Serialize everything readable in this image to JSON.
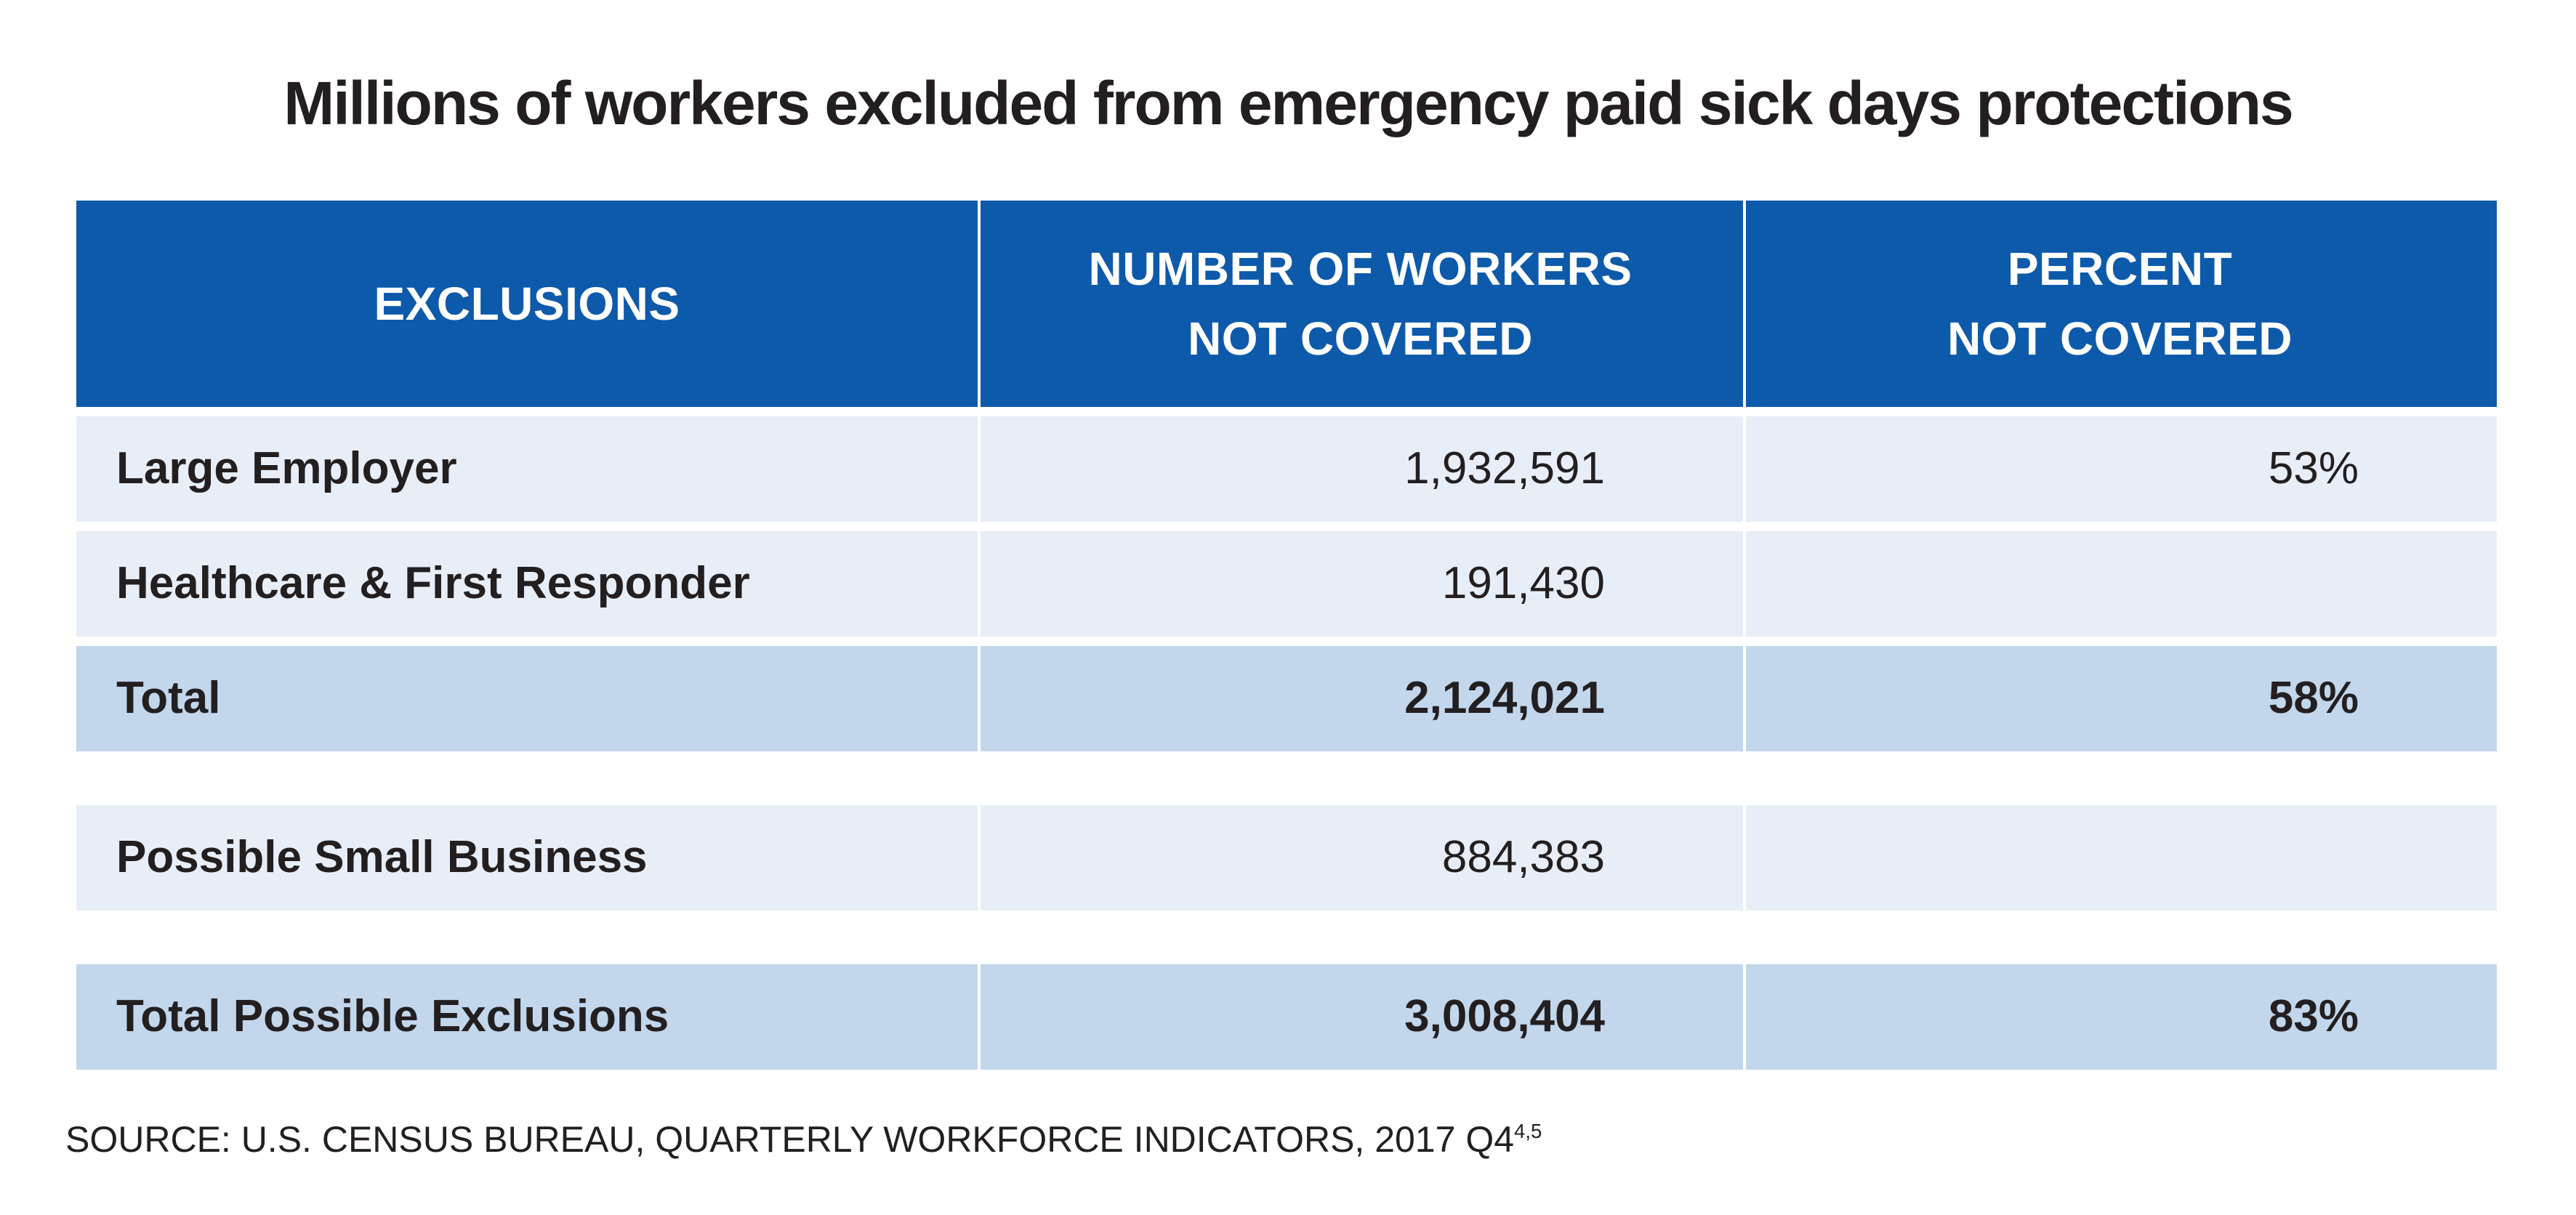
{
  "title": "Millions of workers excluded from emergency paid sick days protections",
  "colors": {
    "header-bg": "#0d5aaa",
    "header-text": "#ffffff",
    "row-light": "#e7eef7",
    "row-dark": "#c2d6ec",
    "text-dark": "#231f20"
  },
  "table": {
    "headers": {
      "exclusions": "EXCLUSIONS",
      "workers": "NUMBER OF WORKERS\nNOT COVERED",
      "percent": "PERCENT\nNOT COVERED"
    },
    "rows": [
      {
        "label": "Large Employer",
        "workers": "1,932,591",
        "percent": "53%"
      },
      {
        "label": "Healthcare & First Responder",
        "workers": "191,430",
        "percent": ""
      },
      {
        "label": "Total",
        "workers": "2,124,021",
        "percent": "58%"
      },
      {
        "label": "Possible Small Business",
        "workers": "884,383",
        "percent": ""
      },
      {
        "label": "Total Possible Exclusions",
        "workers": "3,008,404",
        "percent": "83%"
      }
    ]
  },
  "source": {
    "text": "SOURCE: U.S. CENSUS BUREAU, QUARTERLY WORKFORCE INDICATORS, 2017 Q4",
    "superscript": "4,5"
  },
  "chart_data": {
    "type": "table",
    "title": "Millions of workers excluded from emergency paid sick days protections",
    "columns": [
      "EXCLUSIONS",
      "NUMBER OF WORKERS NOT COVERED",
      "PERCENT NOT COVERED"
    ],
    "rows": [
      {
        "exclusion": "Large Employer",
        "workers_not_covered": 1932591,
        "percent_not_covered": "53%"
      },
      {
        "exclusion": "Healthcare & First Responder",
        "workers_not_covered": 191430,
        "percent_not_covered": null
      },
      {
        "exclusion": "Total",
        "workers_not_covered": 2124021,
        "percent_not_covered": "58%"
      },
      {
        "exclusion": "Possible Small Business",
        "workers_not_covered": 884383,
        "percent_not_covered": null
      },
      {
        "exclusion": "Total Possible Exclusions",
        "workers_not_covered": 3008404,
        "percent_not_covered": "83%"
      }
    ],
    "source": "SOURCE: U.S. CENSUS BUREAU, QUARTERLY WORKFORCE INDICATORS, 2017 Q4 [notes 4,5]",
    "layout": {
      "highlight_rows": [
        "Total",
        "Total Possible Exclusions"
      ],
      "grid": "white gaps between rows"
    }
  }
}
